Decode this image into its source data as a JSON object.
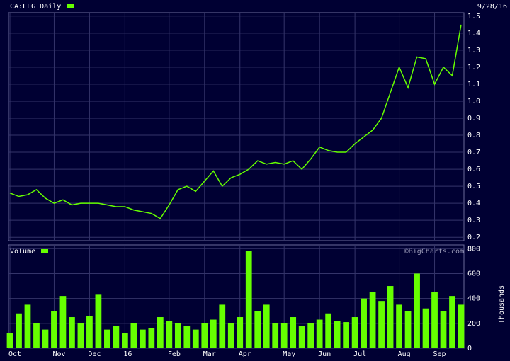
{
  "chart_data": [
    {
      "type": "line",
      "title": "CA:LLG Daily",
      "date": "9/28/16",
      "watermark": "©BigCharts.com",
      "color": "#66ff00",
      "grid": true,
      "values": [
        0.46,
        0.44,
        0.45,
        0.48,
        0.43,
        0.4,
        0.42,
        0.39,
        0.4,
        0.4,
        0.4,
        0.39,
        0.38,
        0.38,
        0.36,
        0.35,
        0.34,
        0.31,
        0.39,
        0.48,
        0.5,
        0.47,
        0.53,
        0.59,
        0.5,
        0.55,
        0.57,
        0.6,
        0.65,
        0.63,
        0.64,
        0.63,
        0.65,
        0.6,
        0.66,
        0.73,
        0.71,
        0.7,
        0.7,
        0.75,
        0.79,
        0.83,
        0.9,
        1.05,
        1.2,
        1.08,
        1.26,
        1.25,
        1.1,
        1.2,
        1.15,
        1.45
      ],
      "ylim": [
        0.18,
        1.52
      ],
      "yticks": [
        0.2,
        0.3,
        0.4,
        0.5,
        0.6,
        0.7,
        0.8,
        0.9,
        {
          "value": 1,
          "label": "1.0"
        },
        1.1,
        1.2,
        1.3,
        1.4,
        1.5
      ]
    },
    {
      "type": "bar",
      "title": "Volume",
      "y_label": "Thousands",
      "color": "#66ff00",
      "grid": true,
      "categories": [
        "Oct",
        null,
        null,
        null,
        null,
        "Nov",
        null,
        null,
        null,
        "Dec",
        null,
        null,
        null,
        "16",
        null,
        null,
        null,
        null,
        "Feb",
        null,
        null,
        null,
        "Mar",
        null,
        null,
        null,
        "Apr",
        null,
        null,
        null,
        null,
        "May",
        null,
        null,
        null,
        "Jun",
        null,
        null,
        null,
        "Jul",
        null,
        null,
        null,
        null,
        "Aug",
        null,
        null,
        null,
        "Sep",
        null,
        null,
        null
      ],
      "values": [
        120,
        280,
        350,
        200,
        150,
        300,
        420,
        250,
        200,
        260,
        430,
        150,
        180,
        120,
        200,
        150,
        160,
        250,
        220,
        200,
        180,
        150,
        200,
        230,
        350,
        200,
        250,
        780,
        300,
        350,
        200,
        200,
        250,
        180,
        200,
        230,
        280,
        220,
        210,
        250,
        400,
        450,
        380,
        500,
        350,
        300,
        600,
        320,
        450,
        300,
        420,
        350
      ],
      "ylim": [
        0,
        830
      ],
      "yticks": [
        0,
        200,
        400,
        600,
        800
      ]
    }
  ]
}
